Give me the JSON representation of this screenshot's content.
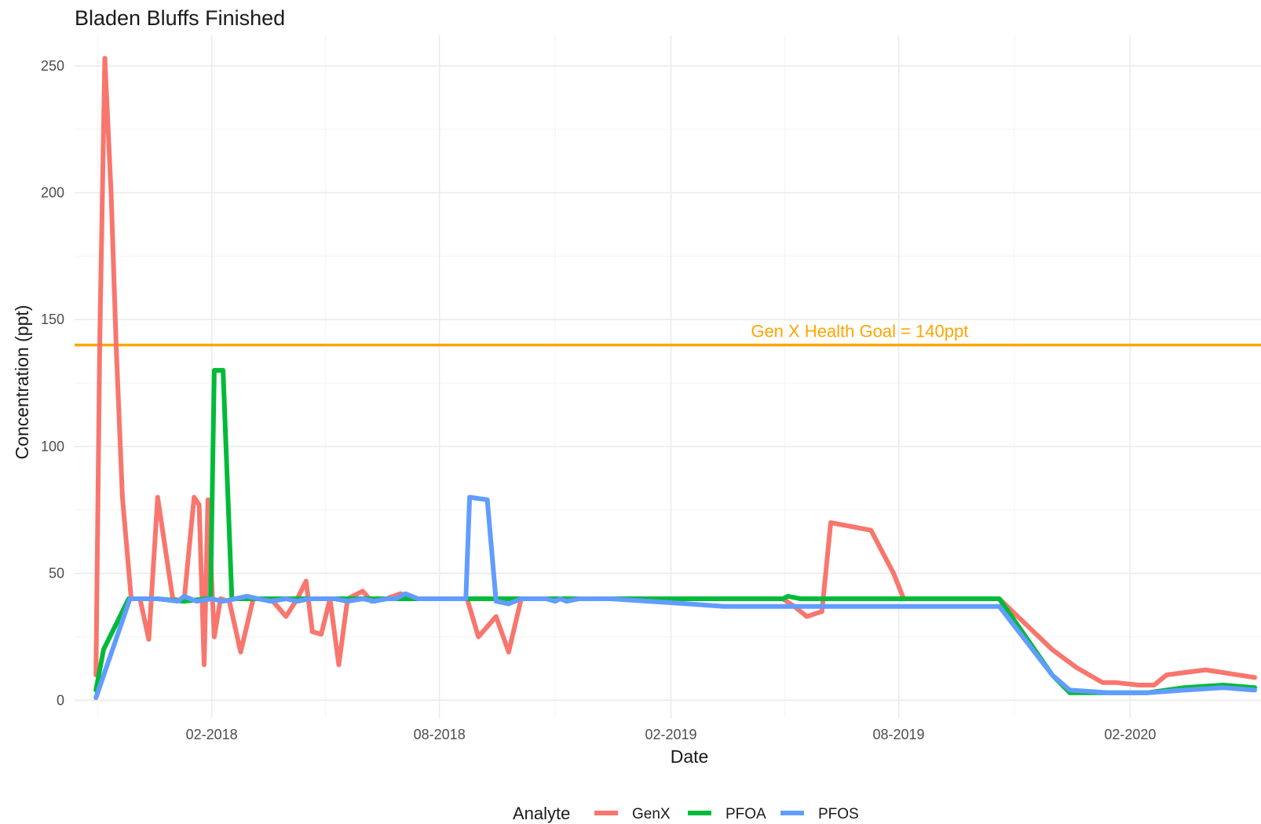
{
  "chart_data": {
    "type": "line",
    "title": "Bladen Bluffs Finished",
    "xlabel": "Date",
    "ylabel": "Concentration (ppt)",
    "ylim": [
      -7,
      262
    ],
    "xlim": [
      "2017-10-15",
      "2020-05-15"
    ],
    "yticks": [
      0,
      50,
      100,
      150,
      200,
      250
    ],
    "xticks": [
      {
        "date": "2018-02-01",
        "label": "02-2018"
      },
      {
        "date": "2018-08-01",
        "label": "08-2018"
      },
      {
        "date": "2019-02-01",
        "label": "02-2019"
      },
      {
        "date": "2019-08-01",
        "label": "08-2019"
      },
      {
        "date": "2020-02-01",
        "label": "02-2020"
      }
    ],
    "grid": true,
    "legend": {
      "title": "Analyte",
      "position": "bottom"
    },
    "hline": {
      "y": 140,
      "color": "#FFA500",
      "label": "Gen X Health Goal = 140ppt",
      "label_x": "2019-07-01"
    },
    "series": [
      {
        "name": "GenX",
        "color": "#F8766D",
        "points": [
          [
            "2017-11-01",
            10
          ],
          [
            "2017-11-04",
            140
          ],
          [
            "2017-11-08",
            253
          ],
          [
            "2017-11-13",
            200
          ],
          [
            "2017-11-17",
            140
          ],
          [
            "2017-11-22",
            80
          ],
          [
            "2017-11-29",
            40
          ],
          [
            "2017-12-06",
            40
          ],
          [
            "2017-12-13",
            24
          ],
          [
            "2017-12-20",
            80
          ],
          [
            "2018-01-01",
            40
          ],
          [
            "2018-01-10",
            39
          ],
          [
            "2018-01-18",
            80
          ],
          [
            "2018-01-22",
            77
          ],
          [
            "2018-01-26",
            14
          ],
          [
            "2018-01-29",
            79
          ],
          [
            "2018-02-03",
            25
          ],
          [
            "2018-02-08",
            40
          ],
          [
            "2018-02-15",
            39
          ],
          [
            "2018-02-24",
            19
          ],
          [
            "2018-03-06",
            40
          ],
          [
            "2018-03-20",
            40
          ],
          [
            "2018-04-01",
            33
          ],
          [
            "2018-04-10",
            40
          ],
          [
            "2018-04-17",
            47
          ],
          [
            "2018-04-22",
            27
          ],
          [
            "2018-04-29",
            26
          ],
          [
            "2018-05-06",
            40
          ],
          [
            "2018-05-13",
            14
          ],
          [
            "2018-05-20",
            40
          ],
          [
            "2018-06-01",
            43
          ],
          [
            "2018-06-08",
            39
          ],
          [
            "2018-06-20",
            40
          ],
          [
            "2018-07-01",
            42
          ],
          [
            "2018-07-15",
            40
          ],
          [
            "2018-08-01",
            40
          ],
          [
            "2018-08-23",
            40
          ],
          [
            "2018-09-01",
            25
          ],
          [
            "2018-09-15",
            33
          ],
          [
            "2018-09-25",
            19
          ],
          [
            "2018-10-05",
            40
          ],
          [
            "2018-10-20",
            40
          ],
          [
            "2018-11-15",
            40
          ],
          [
            "2018-12-15",
            40
          ],
          [
            "2019-01-15",
            40
          ],
          [
            "2019-02-15",
            40
          ],
          [
            "2019-03-15",
            40
          ],
          [
            "2019-04-15",
            40
          ],
          [
            "2019-05-01",
            40
          ],
          [
            "2019-05-10",
            37
          ],
          [
            "2019-05-20",
            33
          ],
          [
            "2019-06-01",
            35
          ],
          [
            "2019-06-08",
            70
          ],
          [
            "2019-07-10",
            67
          ],
          [
            "2019-07-28",
            50
          ],
          [
            "2019-08-05",
            40
          ],
          [
            "2019-09-01",
            40
          ],
          [
            "2019-10-01",
            40
          ],
          [
            "2019-10-20",
            40
          ],
          [
            "2019-12-01",
            20
          ],
          [
            "2019-12-20",
            13
          ],
          [
            "2020-01-10",
            7
          ],
          [
            "2020-01-20",
            7
          ],
          [
            "2020-02-08",
            6
          ],
          [
            "2020-02-20",
            6
          ],
          [
            "2020-03-01",
            10
          ],
          [
            "2020-04-01",
            12
          ],
          [
            "2020-05-10",
            9
          ]
        ]
      },
      {
        "name": "PFOA",
        "color": "#00BA38",
        "points": [
          [
            "2017-11-01",
            4
          ],
          [
            "2017-11-07",
            20
          ],
          [
            "2017-11-27",
            40
          ],
          [
            "2017-12-20",
            40
          ],
          [
            "2018-01-10",
            39
          ],
          [
            "2018-01-28",
            40
          ],
          [
            "2018-01-31",
            40
          ],
          [
            "2018-02-03",
            130
          ],
          [
            "2018-02-10",
            130
          ],
          [
            "2018-02-17",
            40
          ],
          [
            "2018-02-22",
            40
          ],
          [
            "2018-04-01",
            40
          ],
          [
            "2018-06-01",
            40
          ],
          [
            "2018-08-01",
            40
          ],
          [
            "2018-10-01",
            40
          ],
          [
            "2018-12-01",
            40
          ],
          [
            "2019-02-01",
            40
          ],
          [
            "2019-04-01",
            40
          ],
          [
            "2019-05-01",
            40
          ],
          [
            "2019-05-05",
            41
          ],
          [
            "2019-05-15",
            40
          ],
          [
            "2019-07-01",
            40
          ],
          [
            "2019-09-01",
            40
          ],
          [
            "2019-10-20",
            40
          ],
          [
            "2019-12-01",
            10
          ],
          [
            "2019-12-15",
            3
          ],
          [
            "2020-01-15",
            3
          ],
          [
            "2020-02-15",
            3
          ],
          [
            "2020-03-15",
            5
          ],
          [
            "2020-04-15",
            6
          ],
          [
            "2020-05-10",
            5
          ]
        ]
      },
      {
        "name": "PFOS",
        "color": "#619CFF",
        "points": [
          [
            "2017-11-01",
            1
          ],
          [
            "2017-11-28",
            40
          ],
          [
            "2017-12-20",
            40
          ],
          [
            "2018-01-05",
            39
          ],
          [
            "2018-01-10",
            41
          ],
          [
            "2018-01-20",
            39
          ],
          [
            "2018-02-01",
            40
          ],
          [
            "2018-02-10",
            39
          ],
          [
            "2018-02-20",
            40
          ],
          [
            "2018-03-01",
            41
          ],
          [
            "2018-03-10",
            40
          ],
          [
            "2018-03-20",
            39
          ],
          [
            "2018-04-01",
            40
          ],
          [
            "2018-04-10",
            39
          ],
          [
            "2018-04-20",
            40
          ],
          [
            "2018-05-01",
            40
          ],
          [
            "2018-05-10",
            40
          ],
          [
            "2018-05-20",
            39
          ],
          [
            "2018-06-01",
            40
          ],
          [
            "2018-06-10",
            39
          ],
          [
            "2018-06-20",
            40
          ],
          [
            "2018-06-27",
            40
          ],
          [
            "2018-07-05",
            42
          ],
          [
            "2018-07-15",
            40
          ],
          [
            "2018-08-01",
            40
          ],
          [
            "2018-08-12",
            40
          ],
          [
            "2018-08-22",
            40
          ],
          [
            "2018-08-25",
            80
          ],
          [
            "2018-09-08",
            79
          ],
          [
            "2018-09-15",
            39
          ],
          [
            "2018-09-25",
            38
          ],
          [
            "2018-10-05",
            40
          ],
          [
            "2018-10-25",
            40
          ],
          [
            "2018-11-01",
            39
          ],
          [
            "2018-11-05",
            40
          ],
          [
            "2018-11-10",
            39
          ],
          [
            "2018-11-20",
            40
          ],
          [
            "2018-12-15",
            40
          ],
          [
            "2019-01-15",
            39
          ],
          [
            "2019-02-15",
            38
          ],
          [
            "2019-03-15",
            37
          ],
          [
            "2019-05-01",
            37
          ],
          [
            "2019-07-01",
            37
          ],
          [
            "2019-09-01",
            37
          ],
          [
            "2019-10-20",
            37
          ],
          [
            "2019-12-01",
            10
          ],
          [
            "2019-12-15",
            4
          ],
          [
            "2020-01-15",
            3
          ],
          [
            "2020-02-15",
            3
          ],
          [
            "2020-03-15",
            4
          ],
          [
            "2020-04-15",
            5
          ],
          [
            "2020-05-10",
            4
          ]
        ]
      }
    ]
  }
}
